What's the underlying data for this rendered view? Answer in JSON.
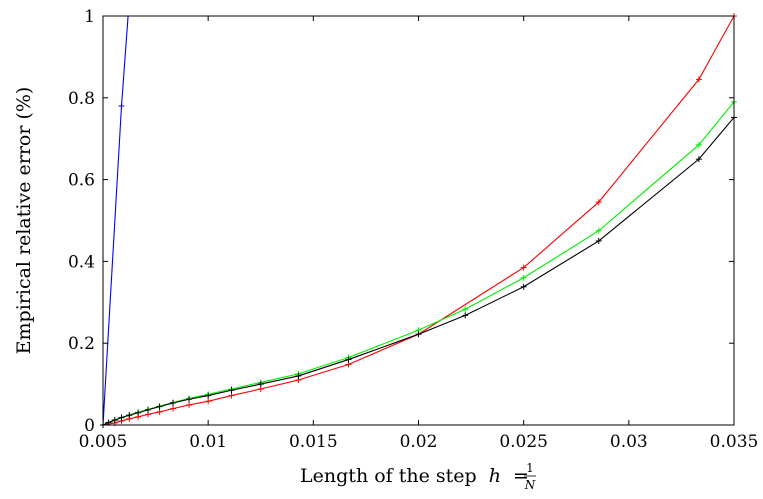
{
  "chart_data": {
    "type": "line",
    "title": "",
    "xlabel": "Length of the step h = 1/N",
    "xlabel_text": "Length of the step",
    "xlabel_var": "h",
    "xlabel_eq": "=",
    "xlabel_num": "1",
    "xlabel_den": "N",
    "ylabel": "Empirical relative error (%)",
    "xlim": [
      0.005,
      0.035
    ],
    "ylim": [
      0,
      1
    ],
    "xticks": [
      0.005,
      0.01,
      0.015,
      0.02,
      0.025,
      0.03,
      0.035
    ],
    "xtick_labels": [
      "0.005",
      "0.01",
      "0.015",
      "0.02",
      "0.025",
      "0.03",
      "0.035"
    ],
    "yticks": [
      0,
      0.2,
      0.4,
      0.6,
      0.8,
      1
    ],
    "ytick_labels": [
      "0",
      "0.2",
      "0.4",
      "0.6",
      "0.8",
      "1"
    ],
    "grid": false,
    "legend": "none",
    "series": [
      {
        "color": "#0000ff",
        "x": [
          0.005,
          0.00588,
          0.00625
        ],
        "y": [
          0,
          0.78,
          1.04
        ]
      },
      {
        "color": "#ff0000",
        "x": [
          0.005,
          0.00556,
          0.00588,
          0.00625,
          0.00667,
          0.00714,
          0.00769,
          0.00833,
          0.00909,
          0.01,
          0.01111,
          0.0125,
          0.01429,
          0.01667,
          0.02,
          0.025,
          0.02857,
          0.03333,
          0.035
        ],
        "y": [
          0,
          0.005,
          0.01,
          0.015,
          0.02,
          0.026,
          0.032,
          0.04,
          0.049,
          0.058,
          0.072,
          0.088,
          0.11,
          0.148,
          0.222,
          0.385,
          0.545,
          0.845,
          1.0
        ]
      },
      {
        "color": "#00ee00",
        "x": [
          0.005,
          0.00526,
          0.00556,
          0.00588,
          0.00625,
          0.00667,
          0.00714,
          0.00769,
          0.00833,
          0.00909,
          0.01,
          0.01111,
          0.0125,
          0.01429,
          0.01667,
          0.02,
          0.02222,
          0.025,
          0.02857,
          0.03333,
          0.035
        ],
        "y": [
          0,
          0.006,
          0.012,
          0.018,
          0.024,
          0.031,
          0.038,
          0.046,
          0.055,
          0.065,
          0.075,
          0.088,
          0.104,
          0.125,
          0.165,
          0.232,
          0.283,
          0.36,
          0.475,
          0.685,
          0.79
        ]
      },
      {
        "color": "#000000",
        "x": [
          0.005,
          0.00526,
          0.00556,
          0.00588,
          0.00625,
          0.00667,
          0.00714,
          0.00769,
          0.00833,
          0.00909,
          0.01,
          0.01111,
          0.0125,
          0.01429,
          0.01667,
          0.02,
          0.02222,
          0.025,
          0.02857,
          0.03333,
          0.035
        ],
        "y": [
          0,
          0.006,
          0.012,
          0.018,
          0.024,
          0.03,
          0.037,
          0.045,
          0.054,
          0.063,
          0.072,
          0.085,
          0.1,
          0.12,
          0.16,
          0.222,
          0.268,
          0.338,
          0.45,
          0.65,
          0.752
        ]
      }
    ]
  }
}
